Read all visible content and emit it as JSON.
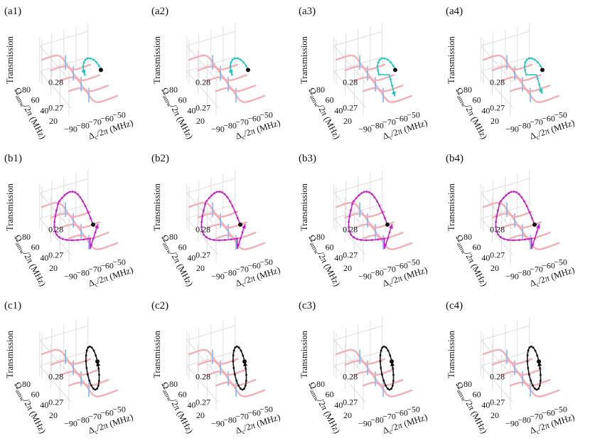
{
  "figure": {
    "colors": {
      "background_curves": "#f2aeb6",
      "resonance_lines": "#7fb6ef",
      "grid": "#d6d6d6",
      "row_a": "#21c5c0",
      "row_b": "#c81ec8",
      "row_c": "#111111",
      "endpoint": "#111111"
    },
    "rows": [
      {
        "row": "a",
        "color_key": "row_a",
        "labels": [
          "(a1)",
          "(a2)",
          "(a3)",
          "(a4)"
        ]
      },
      {
        "row": "b",
        "color_key": "row_b",
        "labels": [
          "(b1)",
          "(b2)",
          "(b3)",
          "(b4)"
        ]
      },
      {
        "row": "c",
        "color_key": "row_c",
        "labels": [
          "(c1)",
          "(c2)",
          "(c3)",
          "(c4)"
        ]
      }
    ]
  },
  "chart_data": {
    "type": "line",
    "projection": "3d",
    "zlabel": "Transmission",
    "ylabel_main": "Ω",
    "ylabel_sub": "amw",
    "ylabel_rest": "/2π (MHz)",
    "xlabel_main": "Δ",
    "xlabel_sub": "c",
    "xlabel_rest": "/2π (MHz)",
    "x_ticks": [
      "−90",
      "−80",
      "−70",
      "−60",
      "−50"
    ],
    "y_ticks": [
      "20",
      "40",
      "60",
      "80"
    ],
    "z_ticks": [
      "0.27",
      "0.28"
    ],
    "x_range": [
      -95,
      -45
    ],
    "y_range": [
      10,
      95
    ],
    "z_range": [
      0.265,
      0.285
    ],
    "background_series": {
      "description": "transmission spectra vs detuning at fixed microwave Rabi frequencies",
      "omega_values": [
        20,
        40,
        60,
        80
      ]
    }
  }
}
